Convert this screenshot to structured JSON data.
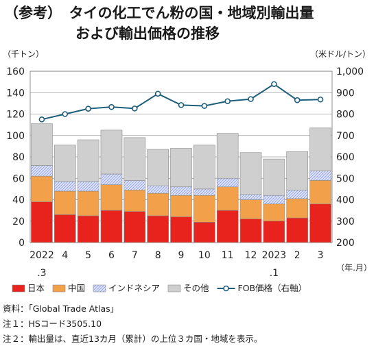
{
  "title": {
    "line1": "（参考）　タイの化工でん粉の国・地域別輸出量",
    "line2": "および輸出価格の推移"
  },
  "units": {
    "left": "（千トン）",
    "right": "（米ドル/トン）",
    "x": "（年.月）"
  },
  "notes": [
    "資料：「Global Trade Atlas」",
    "注１：HSコード3505.10",
    "注２：輸出量は、直近13カ月（累計）の上位３カ国・地域を表示。"
  ],
  "chart_data": {
    "type": "bar",
    "stacked": true,
    "categories": [
      "2022\n.3",
      "4",
      "5",
      "6",
      "7",
      "8",
      "9",
      "10",
      "11",
      "12",
      "2023\n.1",
      "2",
      "3"
    ],
    "yTicks": [
      "0",
      "20",
      "40",
      "60",
      "80",
      "100",
      "120",
      "140",
      "160"
    ],
    "y2Ticks": [
      "200",
      "300",
      "400",
      "500",
      "600",
      "700",
      "800",
      "900",
      "1,000"
    ],
    "ylim": [
      0,
      160
    ],
    "y2lim": [
      200,
      1000
    ],
    "grid": true,
    "legend_position": "bottom",
    "series": [
      {
        "name": "日本",
        "color": "#e8231d",
        "values": [
          38,
          26,
          25,
          30,
          29,
          25,
          24,
          19,
          30,
          22,
          20,
          23,
          36
        ]
      },
      {
        "name": "中国",
        "color": "#f2a04a",
        "values": [
          24,
          22,
          23,
          24,
          20,
          21,
          20,
          25,
          22,
          18,
          16,
          18,
          22
        ]
      },
      {
        "name": "インドネシア",
        "color": "#c7d0f4",
        "values": [
          10,
          9,
          9,
          10,
          9,
          7,
          8,
          6,
          8,
          5,
          8,
          8,
          9
        ]
      },
      {
        "name": "その他",
        "color": "#cfcfcf",
        "values": [
          39,
          34,
          39,
          41,
          40,
          34,
          36,
          41,
          42,
          39,
          34,
          36,
          40
        ]
      }
    ],
    "line": {
      "name": "FOB価格（右軸）",
      "color": "#1d5e7a",
      "values": [
        775,
        800,
        825,
        833,
        826,
        895,
        842,
        838,
        860,
        870,
        940,
        865,
        868
      ]
    }
  }
}
